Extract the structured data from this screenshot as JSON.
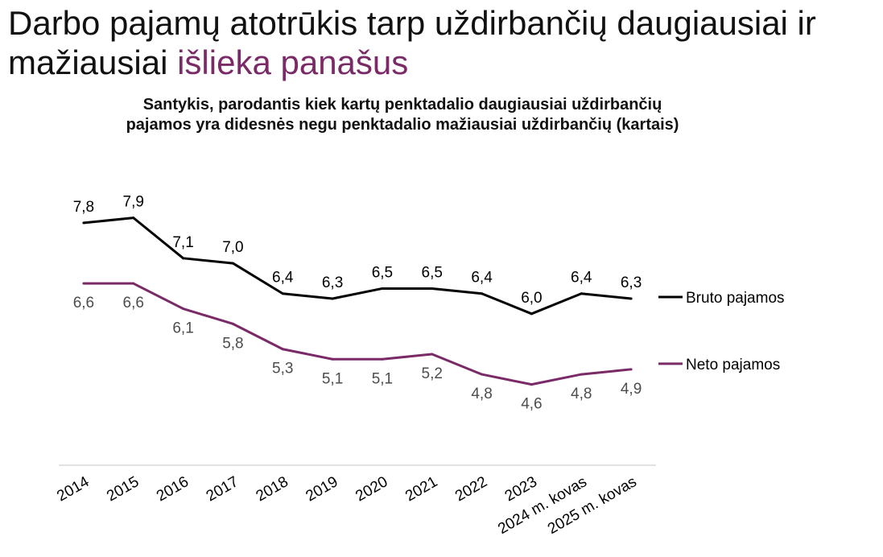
{
  "headline": {
    "part1": "Darbo pajamų atotrūkis tarp uždirbančių daugiausiai ir mažiausiai ",
    "part2": "išlieka panašus"
  },
  "colors": {
    "accent": "#7a2a66",
    "bruto": "#000000",
    "neto": "#7a2a66"
  },
  "chart_data": {
    "type": "line",
    "title": "Santykis, parodantis kiek kartų penktadalio daugiausiai uždirbančių pajamos yra didesnės negu penktadalio mažiausiai uždirbančių (kartais)",
    "categories": [
      "2014",
      "2015",
      "2016",
      "2017",
      "2018",
      "2019",
      "2020",
      "2021",
      "2022",
      "2023",
      "2024 m. kovas",
      "2025 m. kovas"
    ],
    "series": [
      {
        "name": "Bruto pajamos",
        "values": [
          7.8,
          7.9,
          7.1,
          7.0,
          6.4,
          6.3,
          6.5,
          6.5,
          6.4,
          6.0,
          6.4,
          6.3
        ],
        "labels": [
          "7,8",
          "7,9",
          "7,1",
          "7,0",
          "6,4",
          "6,3",
          "6,5",
          "6,5",
          "6,4",
          "6,0",
          "6,4",
          "6,3"
        ],
        "color": "#000000"
      },
      {
        "name": "Neto pajamos",
        "values": [
          6.6,
          6.6,
          6.1,
          5.8,
          5.3,
          5.1,
          5.1,
          5.2,
          4.8,
          4.6,
          4.8,
          4.9
        ],
        "labels": [
          "6,6",
          "6,6",
          "6,1",
          "5,8",
          "5,3",
          "5,1",
          "5,1",
          "5,2",
          "4,8",
          "4,6",
          "4,8",
          "4,9"
        ],
        "color": "#7a2a66"
      }
    ],
    "ylim": [
      3.0,
      8.5
    ],
    "grid": false,
    "legend": "right"
  }
}
